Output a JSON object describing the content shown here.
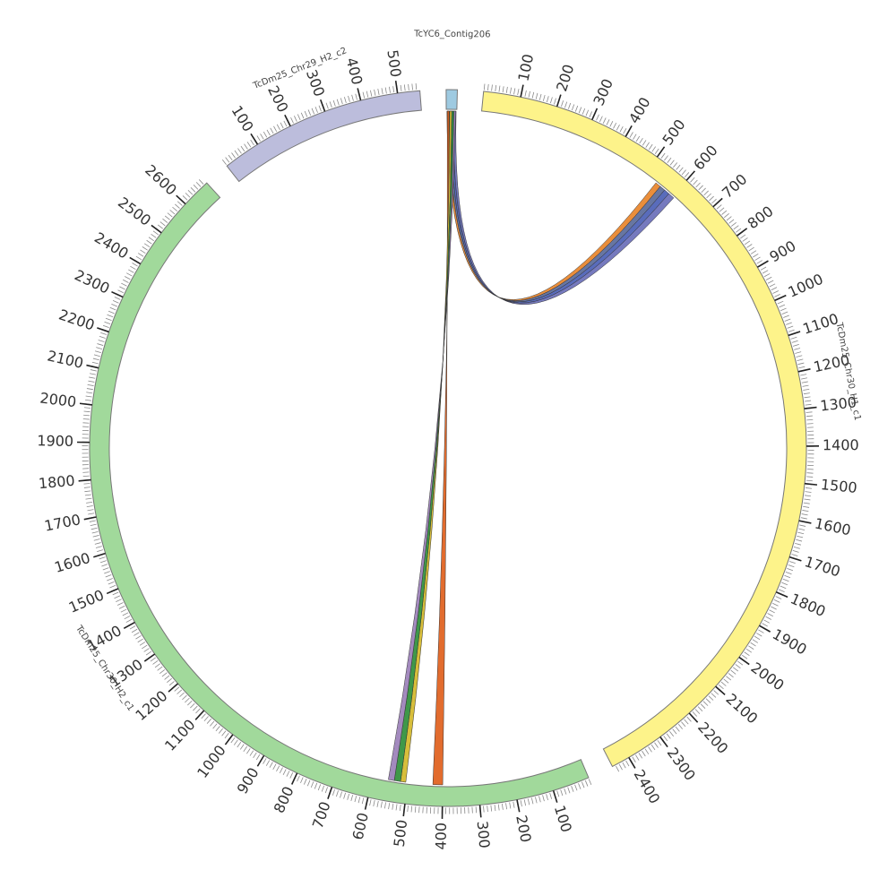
{
  "chart_data": {
    "type": "chord",
    "segments": [
      {
        "name": "TcYC6_Contig206",
        "length": 30,
        "color": "#9ecae1",
        "ticks": []
      },
      {
        "name": "TcDm25_Chr30_H1_c1",
        "length": 2450,
        "color": "#fdf38a",
        "ticks": [
          100,
          200,
          300,
          400,
          500,
          600,
          700,
          800,
          900,
          1000,
          1100,
          1200,
          1300,
          1400,
          1500,
          1600,
          1700,
          1800,
          1900,
          2000,
          2100,
          2200,
          2300,
          2400
        ]
      },
      {
        "name": "TcDm25_Chr30_H2_c1",
        "length": 2680,
        "color": "#a1d99b",
        "ticks": [
          100,
          200,
          300,
          400,
          500,
          600,
          700,
          800,
          900,
          1000,
          1100,
          1200,
          1300,
          1400,
          1500,
          1600,
          1700,
          1800,
          1900,
          2000,
          2100,
          2200,
          2300,
          2400,
          2500,
          2600
        ]
      },
      {
        "name": "TcDm25_Chr29_H2_c2",
        "length": 560,
        "color": "#bcbddc",
        "ticks": [
          100,
          200,
          300,
          400,
          500
        ]
      }
    ],
    "links": [
      {
        "source": 0,
        "source_range": [
          2,
          9
        ],
        "target": 1,
        "target_range": [
          540,
          556
        ],
        "color": "#e8842a"
      },
      {
        "source": 0,
        "source_range": [
          9,
          15
        ],
        "target": 1,
        "target_range": [
          556,
          572
        ],
        "color": "#5a6a9a"
      },
      {
        "source": 0,
        "source_range": [
          15,
          21
        ],
        "target": 1,
        "target_range": [
          572,
          588
        ],
        "color": "#4b5fb5"
      },
      {
        "source": 0,
        "source_range": [
          21,
          28
        ],
        "target": 1,
        "target_range": [
          588,
          606
        ],
        "color": "#6a6fb8"
      },
      {
        "source": 0,
        "source_range": [
          3,
          8
        ],
        "target": 2,
        "target_range": [
          400,
          428
        ],
        "color": "#e0601c"
      },
      {
        "source": 0,
        "source_range": [
          10,
          16
        ],
        "target": 2,
        "target_range": [
          505,
          520
        ],
        "color": "#d4b82a"
      },
      {
        "source": 0,
        "source_range": [
          16,
          22
        ],
        "target": 2,
        "target_range": [
          520,
          538
        ],
        "color": "#2f8f3a"
      },
      {
        "source": 0,
        "source_range": [
          22,
          27
        ],
        "target": 2,
        "target_range": [
          538,
          555
        ],
        "color": "#9b80b8"
      }
    ]
  }
}
